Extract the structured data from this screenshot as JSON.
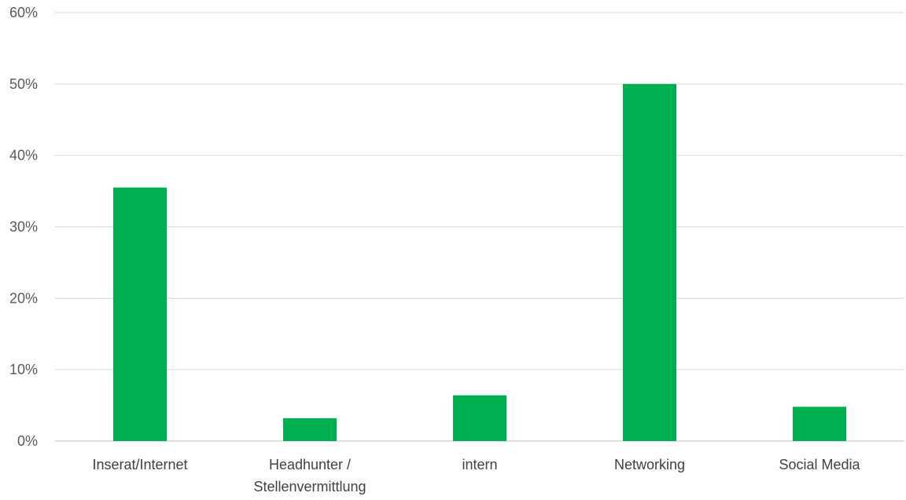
{
  "chart_data": {
    "type": "bar",
    "title": "",
    "xlabel": "",
    "ylabel": "",
    "categories": [
      [
        "Inserat/Internet"
      ],
      [
        "Headhunter /",
        "Stellenvermittlung"
      ],
      [
        "intern"
      ],
      [
        "Networking"
      ],
      [
        "Social Media"
      ]
    ],
    "values": [
      35.5,
      3.2,
      6.4,
      50,
      4.8
    ],
    "ylim": [
      0,
      60
    ],
    "yticks": [
      "0%",
      "10%",
      "20%",
      "30%",
      "40%",
      "50%",
      "60%"
    ],
    "grid": true,
    "legend": "none",
    "bar_color": "#00B050"
  }
}
